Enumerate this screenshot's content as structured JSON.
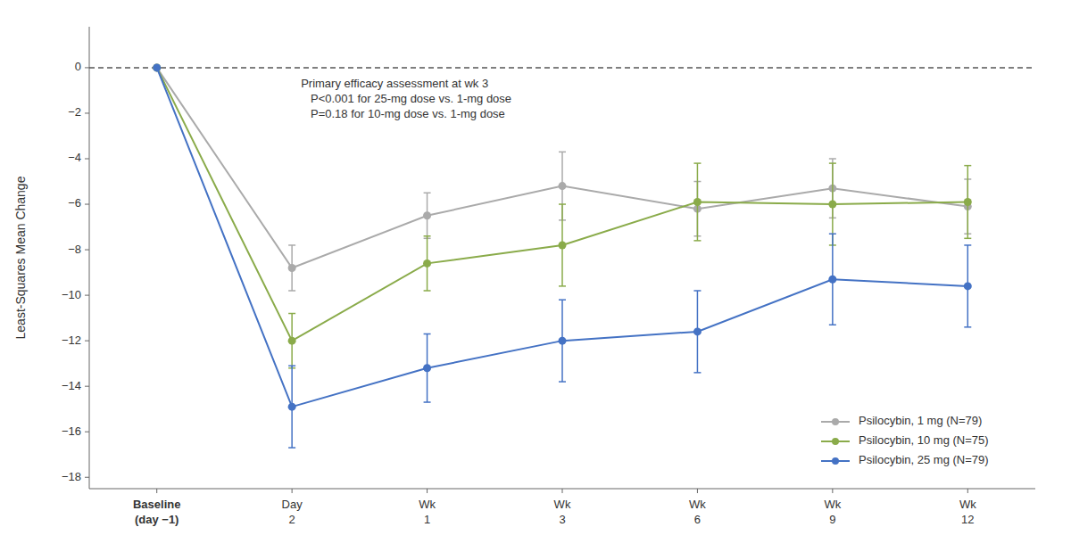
{
  "chart_data": {
    "type": "line",
    "ylabel": "Least-Squares Mean Change",
    "annotation": "Primary efficacy assessment at wk 3\n   P<0.001 for 25-mg dose vs. 1-mg dose\n   P=0.18 for 10-mg dose vs. 1-mg dose",
    "categories": [
      "Baseline\n(day −1)",
      "Day\n2",
      "Wk\n1",
      "Wk\n3",
      "Wk\n6",
      "Wk\n9",
      "Wk\n12"
    ],
    "series": [
      {
        "name": "Psilocybin, 1 mg (N=79)",
        "color": "#aaaaaa",
        "values": [
          0,
          -8.8,
          -6.5,
          -5.2,
          -6.2,
          -5.3,
          -6.1
        ],
        "errors": [
          0,
          1.0,
          1.0,
          1.5,
          1.2,
          1.3,
          1.2
        ]
      },
      {
        "name": "Psilocybin, 10 mg (N=75)",
        "color": "#8aab4a",
        "values": [
          0,
          -12.0,
          -8.6,
          -7.8,
          -5.9,
          -6.0,
          -5.9
        ],
        "errors": [
          0,
          1.2,
          1.2,
          1.8,
          1.7,
          1.8,
          1.6
        ]
      },
      {
        "name": "Psilocybin, 25 mg (N=79)",
        "color": "#4472c4",
        "values": [
          0,
          -14.9,
          -13.2,
          -12.0,
          -11.6,
          -9.3,
          -9.6
        ],
        "errors": [
          0,
          1.8,
          1.5,
          1.8,
          1.8,
          2.0,
          1.8
        ]
      }
    ],
    "ylim": [
      -18.5,
      1.8
    ],
    "yticks": [
      0,
      {
        "value": -2,
        "label": "−2"
      },
      {
        "value": -4,
        "label": "−4"
      },
      {
        "value": -6,
        "label": "−6"
      },
      {
        "value": -8,
        "label": "−8"
      },
      {
        "value": -10,
        "label": "−10"
      },
      {
        "value": -12,
        "label": "−12"
      },
      {
        "value": -14,
        "label": "−14"
      },
      {
        "value": -16,
        "label": "−16"
      },
      {
        "value": -18,
        "label": "−18"
      }
    ],
    "legend": "lower right",
    "grid": false,
    "marker": "circle",
    "line_style": "solid"
  }
}
